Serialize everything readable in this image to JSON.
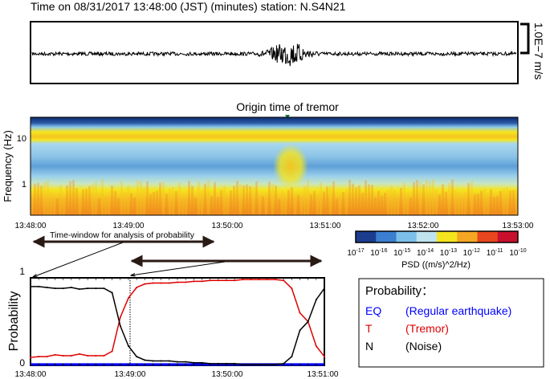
{
  "seismogram": {
    "title": "Time on 08/31/2017 13:48:00 (JST) (minutes)  station: N.S4N21",
    "scale_label": "1.0E−7 m/s"
  },
  "spectrogram": {
    "annotation": "Origin time of tremor",
    "ylabel": "Frequency (Hz)",
    "yticks": [
      "10",
      "1"
    ],
    "xticks": [
      "13:48:00",
      "13:49:00",
      "13:50:00",
      "13:51:00",
      "13:52:00",
      "13:53:00"
    ],
    "colorbar": {
      "label": "PSD ((m/s)^2/Hz)",
      "exponents": [
        "-17",
        "-16",
        "-15",
        "-14",
        "-13",
        "-12",
        "-11",
        "-10"
      ],
      "colors": [
        "#1c3d8f",
        "#3b7fd0",
        "#7cc0ea",
        "#bfe3ef",
        "#f5e51e",
        "#f5a623",
        "#e8461e",
        "#c8102e"
      ]
    }
  },
  "window_label": "Time-window for analysis of probability",
  "chart_data": {
    "type": "line",
    "ylabel": "Probability",
    "ylim": [
      0,
      1
    ],
    "yticks": [
      "1",
      "0"
    ],
    "xticks": [
      "13:48:00",
      "13:49:00",
      "13:50:00",
      "13:51:00"
    ],
    "x_seconds_step": 5,
    "series": [
      {
        "name": "EQ",
        "color": "#0000ff",
        "values": [
          0.01,
          0.01,
          0.01,
          0.01,
          0.01,
          0.01,
          0.01,
          0.01,
          0.01,
          0.01,
          0.01,
          0.01,
          0.01,
          0.01,
          0.01,
          0.01,
          0.01,
          0.01,
          0.01,
          0.01,
          0.01,
          0.01,
          0.01,
          0.01,
          0.01,
          0.01,
          0.01,
          0.01,
          0.01,
          0.01,
          0.01,
          0.01,
          0.01,
          0.01,
          0.01,
          0.01,
          0.01
        ]
      },
      {
        "name": "T",
        "color": "#e00000",
        "values": [
          0.09,
          0.1,
          0.1,
          0.12,
          0.11,
          0.11,
          0.13,
          0.11,
          0.11,
          0.11,
          0.16,
          0.55,
          0.77,
          0.89,
          0.93,
          0.94,
          0.94,
          0.94,
          0.95,
          0.95,
          0.96,
          0.96,
          0.97,
          0.97,
          0.97,
          0.97,
          0.98,
          0.98,
          0.98,
          0.98,
          0.98,
          0.97,
          0.88,
          0.6,
          0.5,
          0.22,
          0.1
        ]
      },
      {
        "name": "N",
        "color": "#000000",
        "values": [
          0.9,
          0.9,
          0.89,
          0.88,
          0.88,
          0.89,
          0.87,
          0.88,
          0.88,
          0.88,
          0.83,
          0.45,
          0.22,
          0.1,
          0.06,
          0.05,
          0.05,
          0.05,
          0.04,
          0.04,
          0.03,
          0.03,
          0.02,
          0.02,
          0.02,
          0.02,
          0.01,
          0.01,
          0.01,
          0.01,
          0.01,
          0.02,
          0.1,
          0.4,
          0.5,
          0.75,
          0.88
        ]
      }
    ]
  },
  "legend": {
    "title": "Probability：",
    "items": [
      {
        "code": "EQ",
        "desc": "(Regular earthquake)",
        "color": "#0000ff"
      },
      {
        "code": "T",
        "desc": "(Tremor)",
        "color": "#e00000"
      },
      {
        "code": "N",
        "desc": "(Noise)",
        "color": "#000000"
      }
    ]
  }
}
